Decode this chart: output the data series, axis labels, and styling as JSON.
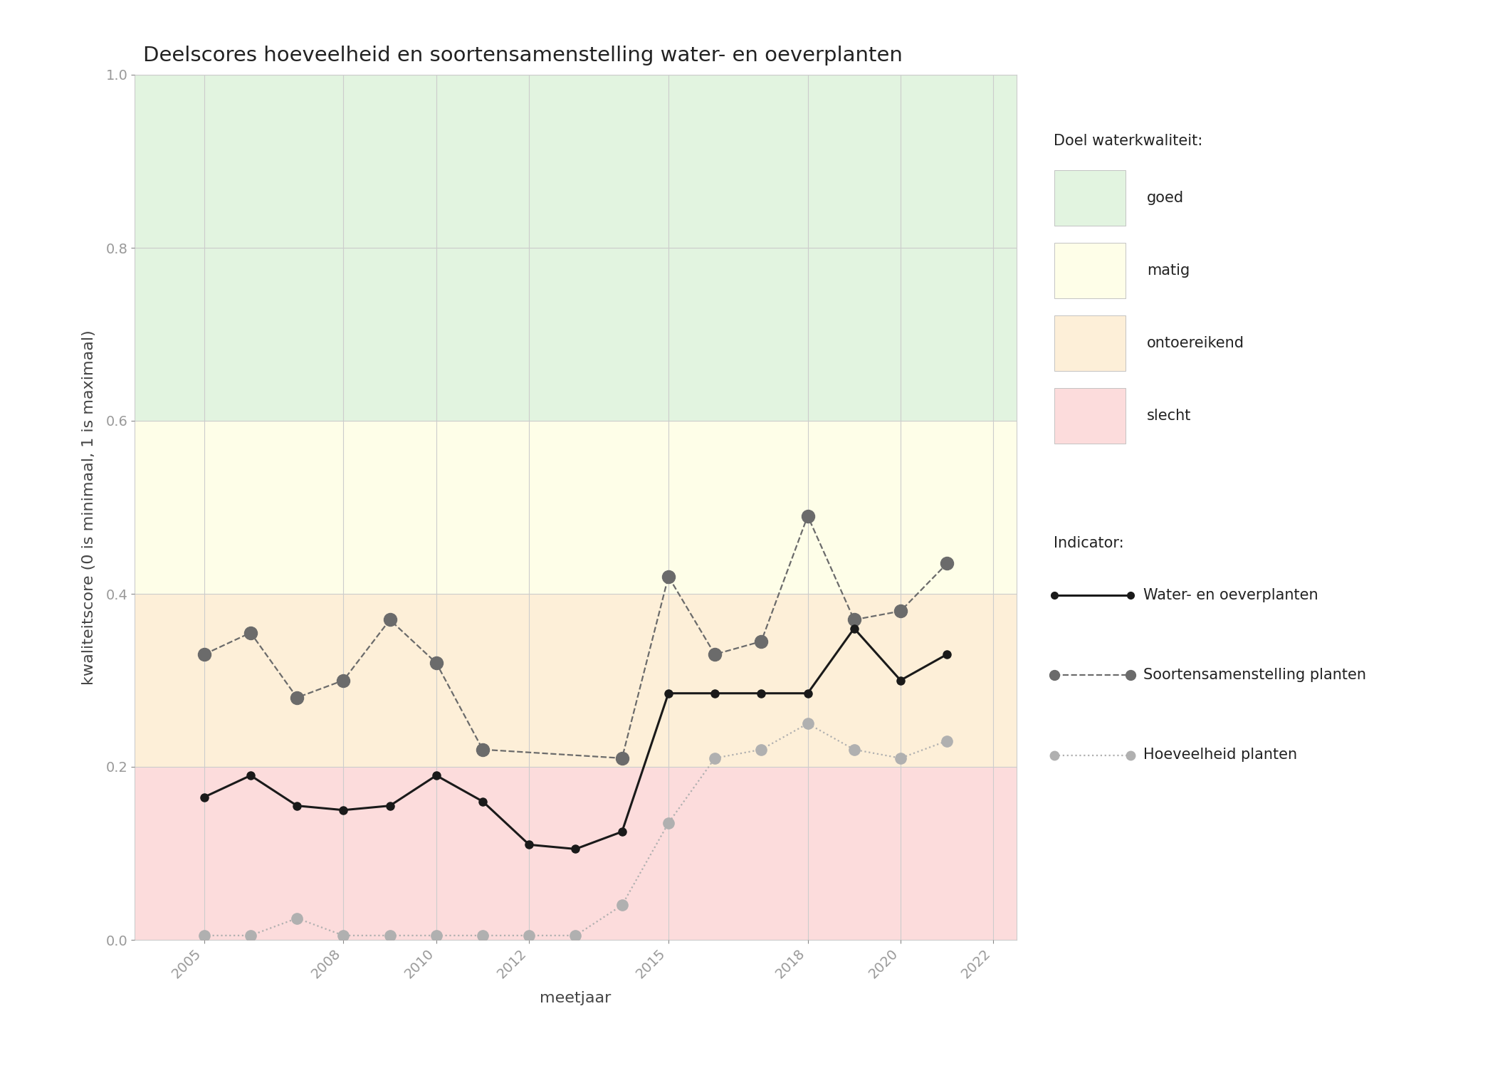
{
  "title": "Deelscores hoeveelheid en soortensamenstelling water- en oeverplanten",
  "xlabel": "meetjaar",
  "ylabel": "kwaliteitscore (0 is minimaal, 1 is maximaal)",
  "xlim": [
    2003.5,
    2022.5
  ],
  "ylim": [
    0.0,
    1.0
  ],
  "xticks": [
    2005,
    2008,
    2010,
    2012,
    2015,
    2018,
    2020,
    2022
  ],
  "yticks": [
    0.0,
    0.2,
    0.4,
    0.6,
    0.8,
    1.0
  ],
  "bg_color": "#ffffff",
  "grid_color": "#cccccc",
  "zones": [
    {
      "label": "goed",
      "ymin": 0.6,
      "ymax": 1.01,
      "color": "#e2f4e0"
    },
    {
      "label": "matig",
      "ymin": 0.4,
      "ymax": 0.6,
      "color": "#fefee8"
    },
    {
      "label": "ontoereikend",
      "ymin": 0.2,
      "ymax": 0.4,
      "color": "#fdefd8"
    },
    {
      "label": "slecht",
      "ymin": 0.0,
      "ymax": 0.2,
      "color": "#fcdcdc"
    }
  ],
  "water_oever_x": [
    2005,
    2006,
    2007,
    2008,
    2009,
    2010,
    2011,
    2012,
    2013,
    2014,
    2015,
    2016,
    2017,
    2018,
    2019,
    2020,
    2021
  ],
  "water_oever_y": [
    0.165,
    0.19,
    0.155,
    0.15,
    0.155,
    0.19,
    0.16,
    0.11,
    0.105,
    0.125,
    0.285,
    0.285,
    0.285,
    0.285,
    0.36,
    0.3,
    0.33
  ],
  "soortensamenstelling_x": [
    2005,
    2006,
    2007,
    2008,
    2009,
    2010,
    2011,
    2014,
    2015,
    2016,
    2017,
    2018,
    2019,
    2020,
    2021
  ],
  "soortensamenstelling_y": [
    0.33,
    0.355,
    0.28,
    0.3,
    0.37,
    0.32,
    0.22,
    0.21,
    0.42,
    0.33,
    0.345,
    0.49,
    0.37,
    0.38,
    0.435
  ],
  "hoeveelheid_x": [
    2005,
    2006,
    2007,
    2008,
    2009,
    2010,
    2011,
    2012,
    2013,
    2014,
    2015,
    2016,
    2017,
    2018,
    2019,
    2020,
    2021
  ],
  "hoeveelheid_y": [
    0.005,
    0.005,
    0.025,
    0.005,
    0.005,
    0.005,
    0.005,
    0.005,
    0.005,
    0.04,
    0.135,
    0.21,
    0.22,
    0.25,
    0.22,
    0.21,
    0.23
  ],
  "water_oever_label": "Water- en oeverplanten",
  "soortensamenstelling_label": "Soortensamenstelling planten",
  "hoeveelheid_label": "Hoeveelheid planten",
  "legend_quality_title": "Doel waterkwaliteit:",
  "legend_indicator_title": "Indicator:",
  "title_fontsize": 21,
  "axis_label_fontsize": 16,
  "tick_fontsize": 14,
  "legend_fontsize": 15,
  "line_color_water": "#1a1a1a",
  "line_color_soort": "#6b6b6b",
  "line_color_hoeveelheid": "#b0b0b0",
  "marker_color_water": "#1a1a1a",
  "marker_color_soort": "#6b6b6b",
  "marker_color_hoeveelheid": "#b0b0b0"
}
